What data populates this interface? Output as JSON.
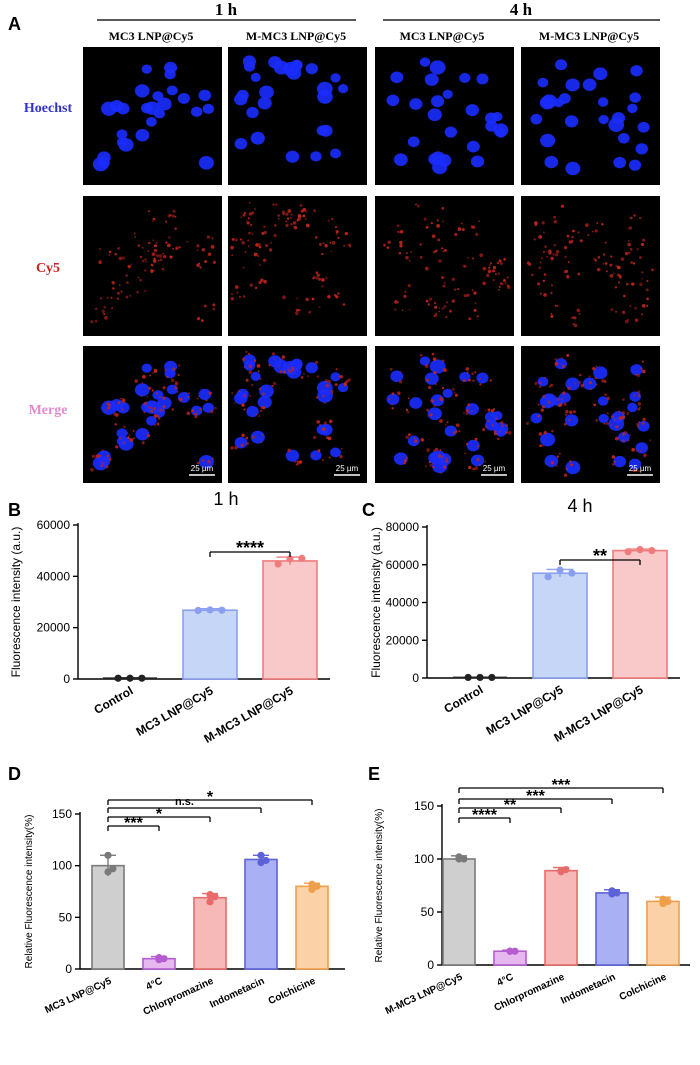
{
  "panel_a": {
    "letter": "A",
    "time_groups": [
      "1 h",
      "4 h"
    ],
    "columns": [
      "MC3 LNP@Cy5",
      "M-MC3 LNP@Cy5",
      "MC3 LNP@Cy5",
      "M-MC3 LNP@Cy5"
    ],
    "rows": [
      {
        "label": "Hoechst",
        "color": "#3333cc"
      },
      {
        "label": "Cy5",
        "color": "#cc2222"
      },
      {
        "label": "Merge",
        "color": "#e58ad0"
      }
    ],
    "scale_bar": "25 µm"
  },
  "chart_data": [
    {
      "panel": "B",
      "type": "bar",
      "title": "1 h",
      "ylabel": "Fluorescence intensity (a.u.)",
      "ylim": [
        0,
        60000
      ],
      "yticks": [
        0,
        20000,
        40000,
        60000
      ],
      "categories": [
        "Control",
        "MC3 LNP@Cy5",
        "M-MC3 LNP@Cy5"
      ],
      "values": [
        300,
        26800,
        46000
      ],
      "errors": [
        150,
        600,
        1500
      ],
      "points": [
        [
          300,
          300,
          300
        ],
        [
          26700,
          26900,
          26800
        ],
        [
          44800,
          46800,
          47000
        ]
      ],
      "fill_colors": [
        "#ffffff",
        "#c6d6f7",
        "#f9c9c9"
      ],
      "edge_colors": [
        "#222222",
        "#8b9ff0",
        "#ef7c7c"
      ],
      "significance": [
        {
          "from": 1,
          "to": 2,
          "label": "****"
        }
      ]
    },
    {
      "panel": "C",
      "type": "bar",
      "title": "4 h",
      "ylabel": "Fluorescence intensity (a.u.)",
      "ylim": [
        0,
        80000
      ],
      "yticks": [
        0,
        20000,
        40000,
        60000,
        80000
      ],
      "categories": [
        "Control",
        "MC3 LNP@Cy5",
        "M-MC3 LNP@Cy5"
      ],
      "values": [
        300,
        55500,
        67500
      ],
      "errors": [
        150,
        2000,
        800
      ],
      "points": [
        [
          300,
          300,
          300
        ],
        [
          53600,
          57200,
          55600
        ],
        [
          66900,
          68000,
          67500
        ]
      ],
      "fill_colors": [
        "#ffffff",
        "#c6d6f7",
        "#f9c9c9"
      ],
      "edge_colors": [
        "#222222",
        "#8b9ff0",
        "#ef7c7c"
      ],
      "significance": [
        {
          "from": 1,
          "to": 2,
          "label": "**"
        }
      ]
    },
    {
      "panel": "D",
      "type": "bar",
      "ylabel": "Relative Fluorescence intensity(%)",
      "ylim": [
        0,
        150
      ],
      "yticks": [
        0,
        50,
        100,
        150
      ],
      "categories": [
        "MC3 LNP@Cy5",
        "4°C",
        "Chlorpromazine",
        "Indometacin",
        "Colchicine"
      ],
      "values": [
        100,
        10,
        69,
        106,
        80
      ],
      "errors": [
        10,
        2,
        4,
        4,
        3
      ],
      "points": [
        [
          110,
          94,
          97
        ],
        [
          11,
          9,
          10
        ],
        [
          72,
          65,
          70
        ],
        [
          110,
          103,
          105
        ],
        [
          82,
          77,
          80
        ]
      ],
      "fill_colors": [
        "#cfcfcf",
        "#e7b8f0",
        "#f7b8b8",
        "#aab0f4",
        "#fbd2a8"
      ],
      "edge_colors": [
        "#7a7a7a",
        "#b45cd0",
        "#e86a6a",
        "#5c63d8",
        "#ef9f4a"
      ],
      "significance": [
        {
          "from": 0,
          "to": 1,
          "label": "***"
        },
        {
          "from": 0,
          "to": 2,
          "label": "*"
        },
        {
          "from": 0,
          "to": 3,
          "label": "n.s."
        },
        {
          "from": 0,
          "to": 4,
          "label": "*"
        }
      ]
    },
    {
      "panel": "E",
      "type": "bar",
      "ylabel": "Relative Fluorescence intensity(%)",
      "ylim": [
        0,
        150
      ],
      "yticks": [
        0,
        50,
        100,
        150
      ],
      "categories": [
        "M-MC3 LNP@Cy5",
        "4°C",
        "Chlorpromazine",
        "Indometacin",
        "Colchicine"
      ],
      "values": [
        100,
        13,
        89,
        68,
        60
      ],
      "errors": [
        3,
        1,
        3,
        3,
        4
      ],
      "points": [
        [
          102,
          100,
          100
        ],
        [
          13,
          13,
          13
        ],
        [
          89,
          88,
          90
        ],
        [
          70,
          67,
          68
        ],
        [
          62,
          58,
          60
        ]
      ],
      "fill_colors": [
        "#cfcfcf",
        "#e7b8f0",
        "#f7b8b8",
        "#aab0f4",
        "#fbd2a8"
      ],
      "edge_colors": [
        "#7a7a7a",
        "#b45cd0",
        "#e86a6a",
        "#5c63d8",
        "#ef9f4a"
      ],
      "significance": [
        {
          "from": 0,
          "to": 1,
          "label": "****"
        },
        {
          "from": 0,
          "to": 2,
          "label": "**"
        },
        {
          "from": 0,
          "to": 3,
          "label": "***"
        },
        {
          "from": 0,
          "to": 4,
          "label": "***"
        }
      ]
    }
  ]
}
